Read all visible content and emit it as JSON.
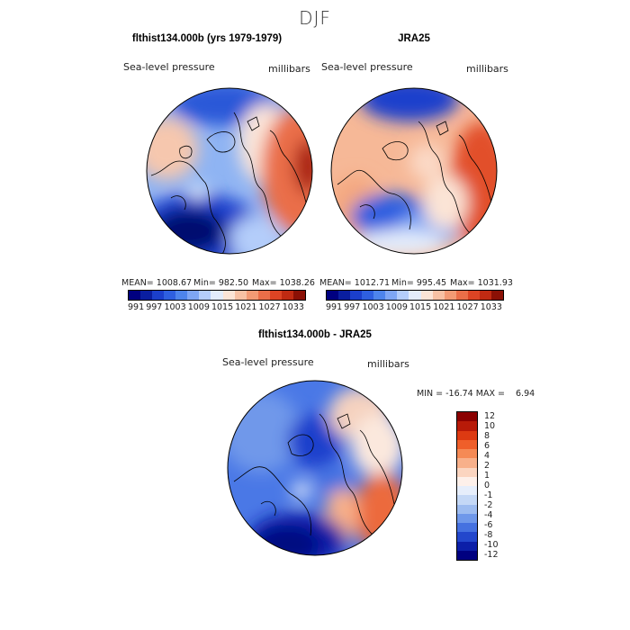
{
  "figure": {
    "title": "DJF"
  },
  "panels": {
    "model": {
      "title": "flthist134.000b (yrs 1979-1979)",
      "variable": "Sea-level pressure",
      "units": "millibars",
      "mean": "MEAN= 1008.67",
      "min": "Min= 982.50",
      "max": "Max= 1038.26"
    },
    "obs": {
      "title": "JRA25",
      "variable": "Sea-level pressure",
      "units": "millibars",
      "mean": "MEAN= 1012.71",
      "min": "Min= 995.45",
      "max": "Max= 1031.93"
    },
    "diff": {
      "title": "flthist134.000b - JRA25",
      "variable": "Sea-level pressure",
      "units": "millibars",
      "minmax": "MIN = -16.74 MAX =    6.94"
    }
  },
  "colorbar_top": {
    "colors": [
      "#000080",
      "#0a1ea0",
      "#1b3fcc",
      "#2e5fe0",
      "#4d84ec",
      "#7ea6f4",
      "#b4cdfa",
      "#e3ecfb",
      "#fbe4d6",
      "#f7c1a4",
      "#f29a74",
      "#ea6e48",
      "#dd4424",
      "#c02a12",
      "#8b1005"
    ],
    "tick_labels": [
      "991",
      "997",
      "1003",
      "1009",
      "1015",
      "1021",
      "1027",
      "1033"
    ]
  },
  "colorbar_diff": {
    "colors": [
      "#8b0000",
      "#b81a08",
      "#dd3a12",
      "#ef5f2a",
      "#f58a55",
      "#f8b08a",
      "#fbd5c0",
      "#fdf0ea",
      "#e6eefb",
      "#c4d8f6",
      "#9dbcf0",
      "#6f98ea",
      "#4571e0",
      "#2347cc",
      "#0c1fa8",
      "#000080"
    ],
    "tick_labels": [
      "12",
      "10",
      "8",
      "6",
      "4",
      "2",
      "1",
      "0",
      "-1",
      "-2",
      "-4",
      "-6",
      "-8",
      "-10",
      "-12"
    ]
  }
}
